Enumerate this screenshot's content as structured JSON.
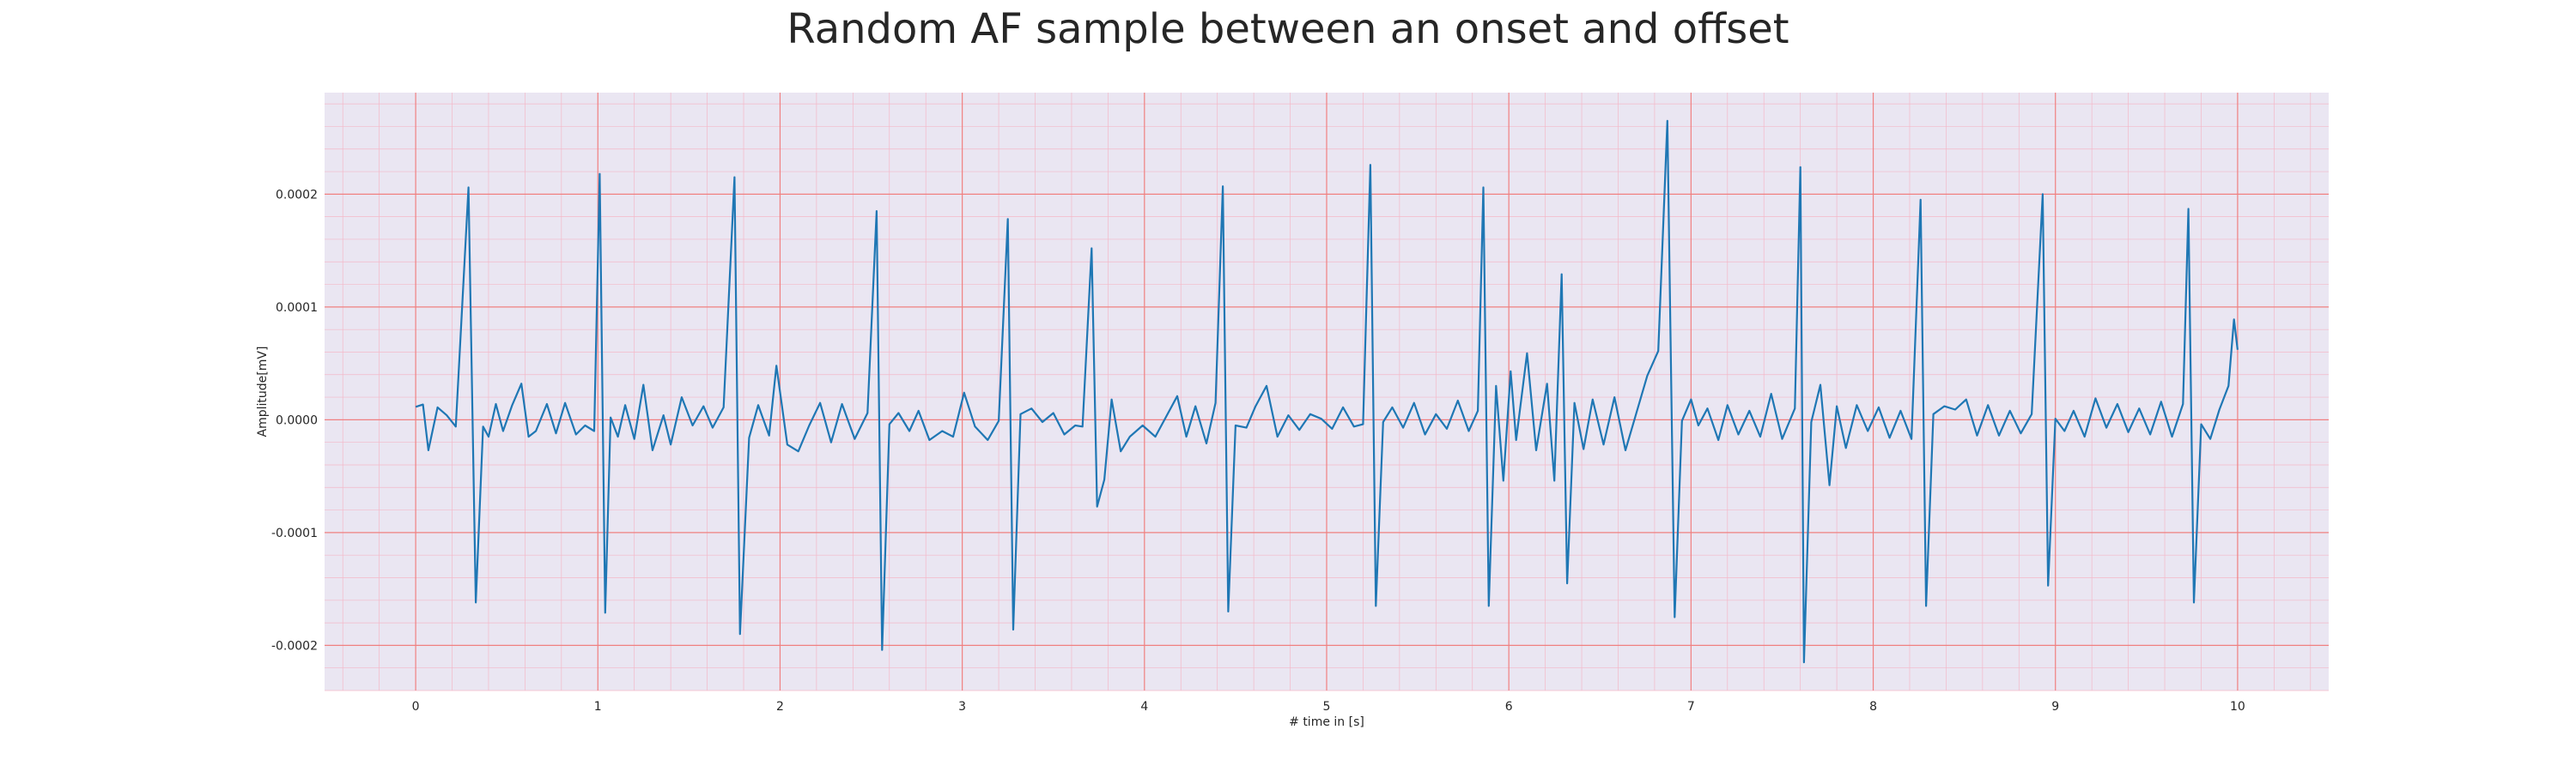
{
  "chart_data": {
    "type": "line",
    "title": "Random AF sample between an onset and offset",
    "xlabel": "# time in [s]",
    "ylabel": "Amplitude[mV]",
    "xlim": [
      -0.5,
      10.5
    ],
    "ylim": [
      -0.00024,
      0.00029
    ],
    "xticks": [
      0,
      1,
      2,
      3,
      4,
      5,
      6,
      7,
      8,
      9,
      10
    ],
    "yticks": [
      -0.0002,
      -0.0001,
      0.0,
      0.0001,
      0.0002
    ],
    "ytick_labels": [
      "-0.0002",
      "-0.0001",
      "0.0000",
      "0.0001",
      "0.0002"
    ],
    "xtick_labels": [
      "0",
      "1",
      "2",
      "3",
      "4",
      "5",
      "6",
      "7",
      "8",
      "9",
      "10"
    ],
    "grid": true,
    "colors": {
      "background": "#eae6f2",
      "major_grid": "#f08080",
      "minor_grid": "#f4b8c8",
      "line": "#1f77b4"
    },
    "series": [
      {
        "values": [
          [
            0.0,
            1.15e-05
          ],
          [
            0.04,
            1.35e-05
          ],
          [
            0.07,
            -2.7e-05
          ],
          [
            0.12,
            1.1e-05
          ],
          [
            0.17,
            4e-06
          ],
          [
            0.22,
            -6e-06
          ],
          [
            0.29,
            0.000206
          ],
          [
            0.33,
            -0.000162
          ],
          [
            0.37,
            -6e-06
          ],
          [
            0.4,
            -1.5e-05
          ],
          [
            0.44,
            1.4e-05
          ],
          [
            0.48,
            -1e-05
          ],
          [
            0.53,
            1.3e-05
          ],
          [
            0.58,
            3.2e-05
          ],
          [
            0.62,
            -1.5e-05
          ],
          [
            0.66,
            -1e-05
          ],
          [
            0.72,
            1.4e-05
          ],
          [
            0.77,
            -1.2e-05
          ],
          [
            0.82,
            1.5e-05
          ],
          [
            0.88,
            -1.3e-05
          ],
          [
            0.93,
            -5e-06
          ],
          [
            0.98,
            -1e-05
          ],
          [
            1.01,
            0.000218
          ],
          [
            1.04,
            -0.000171
          ],
          [
            1.07,
            2e-06
          ],
          [
            1.11,
            -1.5e-05
          ],
          [
            1.15,
            1.3e-05
          ],
          [
            1.2,
            -1.7e-05
          ],
          [
            1.25,
            3.1e-05
          ],
          [
            1.3,
            -2.7e-05
          ],
          [
            1.36,
            4e-06
          ],
          [
            1.4,
            -2.2e-05
          ],
          [
            1.46,
            2e-05
          ],
          [
            1.52,
            -5e-06
          ],
          [
            1.58,
            1.2e-05
          ],
          [
            1.63,
            -7e-06
          ],
          [
            1.69,
            1.1e-05
          ],
          [
            1.75,
            0.000215
          ],
          [
            1.78,
            -0.00019
          ],
          [
            1.83,
            -1.6e-05
          ],
          [
            1.88,
            1.3e-05
          ],
          [
            1.94,
            -1.4e-05
          ],
          [
            1.98,
            4.8e-05
          ],
          [
            2.04,
            -2.2e-05
          ],
          [
            2.1,
            -2.8e-05
          ],
          [
            2.16,
            -5e-06
          ],
          [
            2.22,
            1.5e-05
          ],
          [
            2.28,
            -2e-05
          ],
          [
            2.34,
            1.4e-05
          ],
          [
            2.41,
            -1.7e-05
          ],
          [
            2.48,
            6e-06
          ],
          [
            2.53,
            0.000185
          ],
          [
            2.56,
            -0.000204
          ],
          [
            2.6,
            -4e-06
          ],
          [
            2.65,
            6e-06
          ],
          [
            2.71,
            -1e-05
          ],
          [
            2.76,
            8e-06
          ],
          [
            2.82,
            -1.8e-05
          ],
          [
            2.89,
            -1e-05
          ],
          [
            2.95,
            -1.5e-05
          ],
          [
            3.01,
            2.4e-05
          ],
          [
            3.07,
            -6e-06
          ],
          [
            3.14,
            -1.8e-05
          ],
          [
            3.2,
            -1e-06
          ],
          [
            3.25,
            0.000178
          ],
          [
            3.28,
            -0.000186
          ],
          [
            3.32,
            5e-06
          ],
          [
            3.38,
            1e-05
          ],
          [
            3.44,
            -2e-06
          ],
          [
            3.5,
            6e-06
          ],
          [
            3.56,
            -1.3e-05
          ],
          [
            3.62,
            -5e-06
          ],
          [
            3.66,
            -6e-06
          ],
          [
            3.71,
            0.000152
          ],
          [
            3.74,
            -7.7e-05
          ],
          [
            3.78,
            -5.3e-05
          ],
          [
            3.82,
            1.8e-05
          ],
          [
            3.87,
            -2.8e-05
          ],
          [
            3.92,
            -1.5e-05
          ],
          [
            3.99,
            -5e-06
          ],
          [
            4.06,
            -1.5e-05
          ],
          [
            4.12,
            3e-06
          ],
          [
            4.18,
            2.1e-05
          ],
          [
            4.23,
            -1.5e-05
          ],
          [
            4.28,
            1.2e-05
          ],
          [
            4.34,
            -2.1e-05
          ],
          [
            4.39,
            1.5e-05
          ],
          [
            4.43,
            0.000207
          ],
          [
            4.46,
            -0.00017
          ],
          [
            4.5,
            -5e-06
          ],
          [
            4.56,
            -7e-06
          ],
          [
            4.61,
            1.2e-05
          ],
          [
            4.67,
            3e-05
          ],
          [
            4.73,
            -1.5e-05
          ],
          [
            4.79,
            4e-06
          ],
          [
            4.85,
            -9e-06
          ],
          [
            4.91,
            5e-06
          ],
          [
            4.97,
            1e-06
          ],
          [
            5.03,
            -8e-06
          ],
          [
            5.09,
            1.1e-05
          ],
          [
            5.15,
            -6e-06
          ],
          [
            5.2,
            -4e-06
          ],
          [
            5.24,
            0.000226
          ],
          [
            5.27,
            -0.000165
          ],
          [
            5.31,
            -2e-06
          ],
          [
            5.36,
            1.1e-05
          ],
          [
            5.42,
            -7e-06
          ],
          [
            5.48,
            1.5e-05
          ],
          [
            5.54,
            -1.3e-05
          ],
          [
            5.6,
            5e-06
          ],
          [
            5.66,
            -8e-06
          ],
          [
            5.72,
            1.7e-05
          ],
          [
            5.78,
            -1e-05
          ],
          [
            5.83,
            8e-06
          ],
          [
            5.86,
            0.000206
          ],
          [
            5.89,
            -0.000165
          ],
          [
            5.93,
            3e-05
          ],
          [
            5.97,
            -5.4e-05
          ],
          [
            6.01,
            4.3e-05
          ],
          [
            6.04,
            -1.8e-05
          ],
          [
            6.1,
            5.9e-05
          ],
          [
            6.15,
            -2.7e-05
          ],
          [
            6.21,
            3.2e-05
          ],
          [
            6.25,
            -5.4e-05
          ],
          [
            6.29,
            0.000129
          ],
          [
            6.32,
            -0.000145
          ],
          [
            6.36,
            1.5e-05
          ],
          [
            6.41,
            -2.6e-05
          ],
          [
            6.46,
            1.8e-05
          ],
          [
            6.52,
            -2.2e-05
          ],
          [
            6.58,
            2e-05
          ],
          [
            6.64,
            -2.7e-05
          ],
          [
            6.7,
            6e-06
          ],
          [
            6.76,
            3.9e-05
          ],
          [
            6.82,
            6.1e-05
          ],
          [
            6.87,
            0.000265
          ],
          [
            6.91,
            -0.000175
          ],
          [
            6.95,
            -1e-06
          ],
          [
            7.0,
            1.8e-05
          ],
          [
            7.04,
            -5e-06
          ],
          [
            7.09,
            1e-05
          ],
          [
            7.15,
            -1.8e-05
          ],
          [
            7.2,
            1.3e-05
          ],
          [
            7.26,
            -1.3e-05
          ],
          [
            7.32,
            8e-06
          ],
          [
            7.38,
            -1.5e-05
          ],
          [
            7.44,
            2.3e-05
          ],
          [
            7.5,
            -1.7e-05
          ],
          [
            7.57,
            1e-05
          ],
          [
            7.6,
            0.000224
          ],
          [
            7.62,
            -0.000215
          ],
          [
            7.66,
            -2e-06
          ],
          [
            7.71,
            3.1e-05
          ],
          [
            7.76,
            -5.8e-05
          ],
          [
            7.8,
            1.2e-05
          ],
          [
            7.85,
            -2.5e-05
          ],
          [
            7.91,
            1.3e-05
          ],
          [
            7.97,
            -1e-05
          ],
          [
            8.03,
            1.1e-05
          ],
          [
            8.09,
            -1.6e-05
          ],
          [
            8.15,
            8e-06
          ],
          [
            8.21,
            -1.7e-05
          ],
          [
            8.26,
            0.000195
          ],
          [
            8.29,
            -0.000165
          ],
          [
            8.33,
            5e-06
          ],
          [
            8.39,
            1.2e-05
          ],
          [
            8.45,
            9e-06
          ],
          [
            8.51,
            1.8e-05
          ],
          [
            8.57,
            -1.4e-05
          ],
          [
            8.63,
            1.3e-05
          ],
          [
            8.69,
            -1.4e-05
          ],
          [
            8.75,
            8e-06
          ],
          [
            8.81,
            -1.2e-05
          ],
          [
            8.87,
            5e-06
          ],
          [
            8.93,
            0.0002
          ],
          [
            8.96,
            -0.000147
          ],
          [
            9.0,
            1e-06
          ],
          [
            9.05,
            -1e-05
          ],
          [
            9.1,
            8e-06
          ],
          [
            9.16,
            -1.5e-05
          ],
          [
            9.22,
            1.9e-05
          ],
          [
            9.28,
            -7e-06
          ],
          [
            9.34,
            1.4e-05
          ],
          [
            9.4,
            -1.1e-05
          ],
          [
            9.46,
            1e-05
          ],
          [
            9.52,
            -1.3e-05
          ],
          [
            9.58,
            1.6e-05
          ],
          [
            9.64,
            -1.5e-05
          ],
          [
            9.7,
            1.4e-05
          ],
          [
            9.73,
            0.000187
          ],
          [
            9.76,
            -0.000162
          ],
          [
            9.8,
            -4e-06
          ],
          [
            9.85,
            -1.7e-05
          ],
          [
            9.9,
            9e-06
          ],
          [
            9.95,
            3e-05
          ],
          [
            9.98,
            8.9e-05
          ],
          [
            10.0,
            6.2e-05
          ]
        ]
      }
    ]
  }
}
